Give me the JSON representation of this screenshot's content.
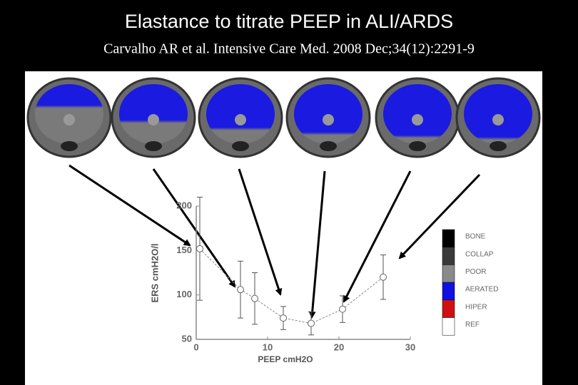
{
  "slide": {
    "title": "Elastance to titrate PEEP in ALI/ARDS",
    "subtitle": "Carvalho AR et al. Intensive Care Med. 2008 Dec;34(12):2291-9"
  },
  "chart_data": {
    "type": "line",
    "x_label": "PEEP cmH2O",
    "y_label": "ERS cmH2O/l",
    "x": [
      0.5,
      6.2,
      8.2,
      12.2,
      16.1,
      20.5,
      26.2
    ],
    "series": [
      {
        "color": "#888888",
        "values": [
          152,
          106,
          96,
          74,
          68,
          84,
          120
        ],
        "errors": [
          58,
          32,
          29,
          13,
          13,
          15,
          25
        ]
      }
    ],
    "xlim": [
      0,
      30
    ],
    "xticks": [
      0,
      10,
      20,
      30
    ],
    "ylim": [
      50,
      200
    ],
    "yticks": [
      50,
      100,
      150,
      200
    ],
    "legend_items": [
      {
        "name": "BONE",
        "color": "#000000"
      },
      {
        "name": "COLLAP",
        "color": "#3a3a3a"
      },
      {
        "name": "POOR",
        "color": "#8a8a8a"
      },
      {
        "name": "AERATED",
        "color": "#1010e0"
      },
      {
        "name": "HIPER",
        "color": "#d01010"
      },
      {
        "name": "REF",
        "color": "#ffffff"
      }
    ]
  }
}
